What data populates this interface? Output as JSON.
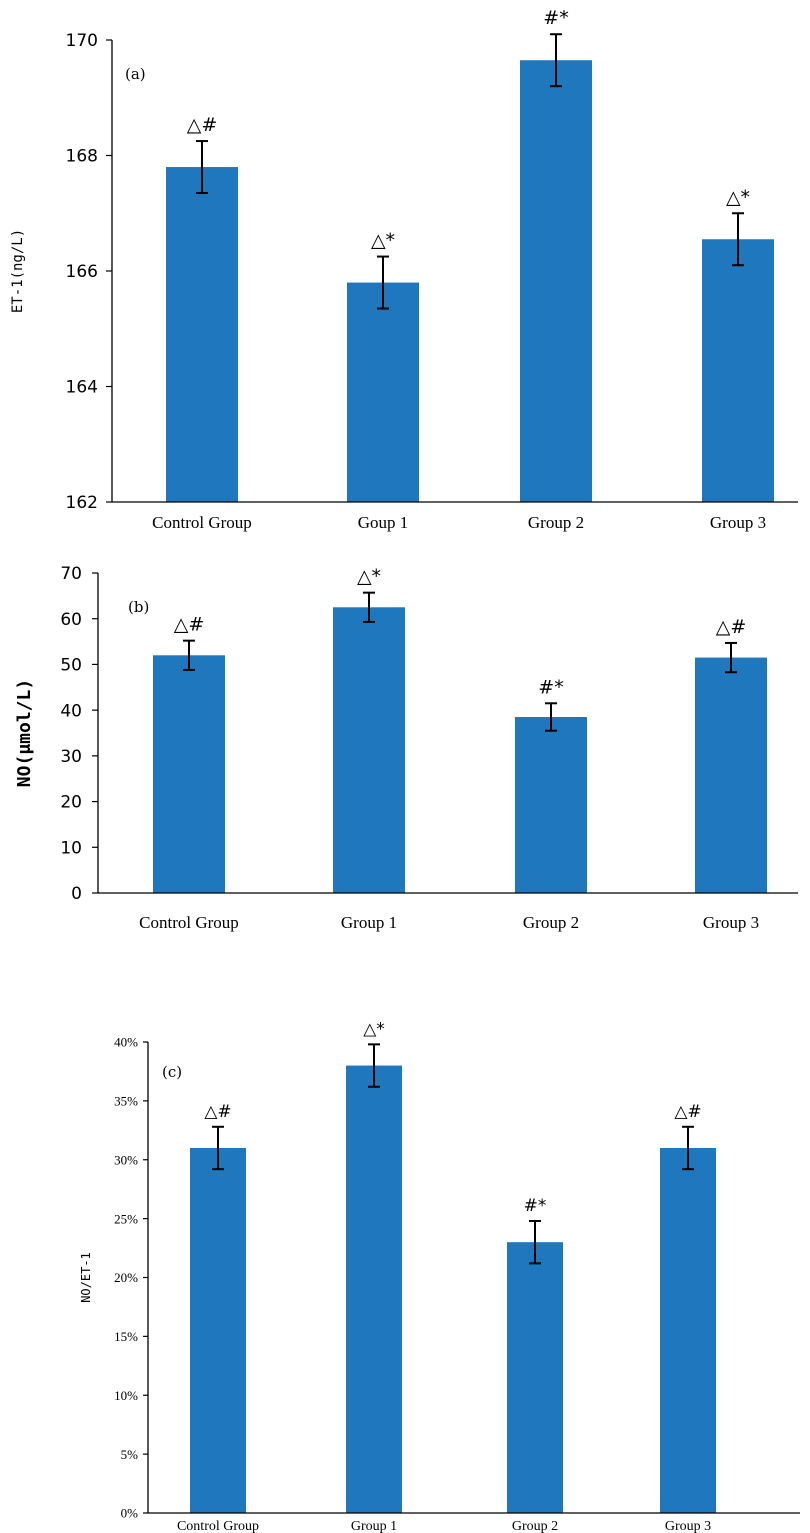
{
  "colors": {
    "bar": "#1f78bd",
    "axis": "#000000",
    "error": "#000000"
  },
  "chart_data": [
    {
      "type": "bar",
      "panel": "(a)",
      "ylabel": "ET-1(ng/L)",
      "ylim": [
        162,
        170
      ],
      "yticks": [
        "162",
        "164",
        "166",
        "168",
        "170"
      ],
      "yticks_values": [
        162,
        164,
        166,
        168,
        170
      ],
      "categories": [
        "Control Group",
        "Goup 1",
        "Group 2",
        "Group 3"
      ],
      "values": [
        167.8,
        165.8,
        169.65,
        166.55
      ],
      "errors": [
        0.45,
        0.45,
        0.45,
        0.45
      ],
      "annotations": [
        "△#",
        "△*",
        "#*",
        "△*"
      ]
    },
    {
      "type": "bar",
      "panel": "(b)",
      "ylabel": "NO(μmol/L)",
      "ylim": [
        0,
        70
      ],
      "yticks": [
        "0",
        "10",
        "20",
        "30",
        "40",
        "50",
        "60",
        "70"
      ],
      "yticks_values": [
        0,
        10,
        20,
        30,
        40,
        50,
        60,
        70
      ],
      "categories": [
        "Control Group",
        "Group 1",
        "Group 2",
        "Group 3"
      ],
      "values": [
        52,
        62.5,
        38.5,
        51.5
      ],
      "errors": [
        3.2,
        3.2,
        3.0,
        3.2
      ],
      "annotations": [
        "△#",
        "△*",
        "#*",
        "△#"
      ]
    },
    {
      "type": "bar",
      "panel": "(c)",
      "ylabel": "NO/ET-1",
      "ylim": [
        0,
        40
      ],
      "yticks": [
        "0%",
        "5%",
        "10%",
        "15%",
        "20%",
        "25%",
        "30%",
        "35%",
        "40%"
      ],
      "yticks_values": [
        0,
        5,
        10,
        15,
        20,
        25,
        30,
        35,
        40
      ],
      "categories": [
        "Control Group",
        "Group 1",
        "Group 2",
        "Group 3"
      ],
      "values": [
        31,
        38,
        23,
        31
      ],
      "errors": [
        1.8,
        1.8,
        1.8,
        1.8
      ],
      "annotations": [
        "△#",
        "△*",
        "#*",
        "△#"
      ]
    }
  ]
}
